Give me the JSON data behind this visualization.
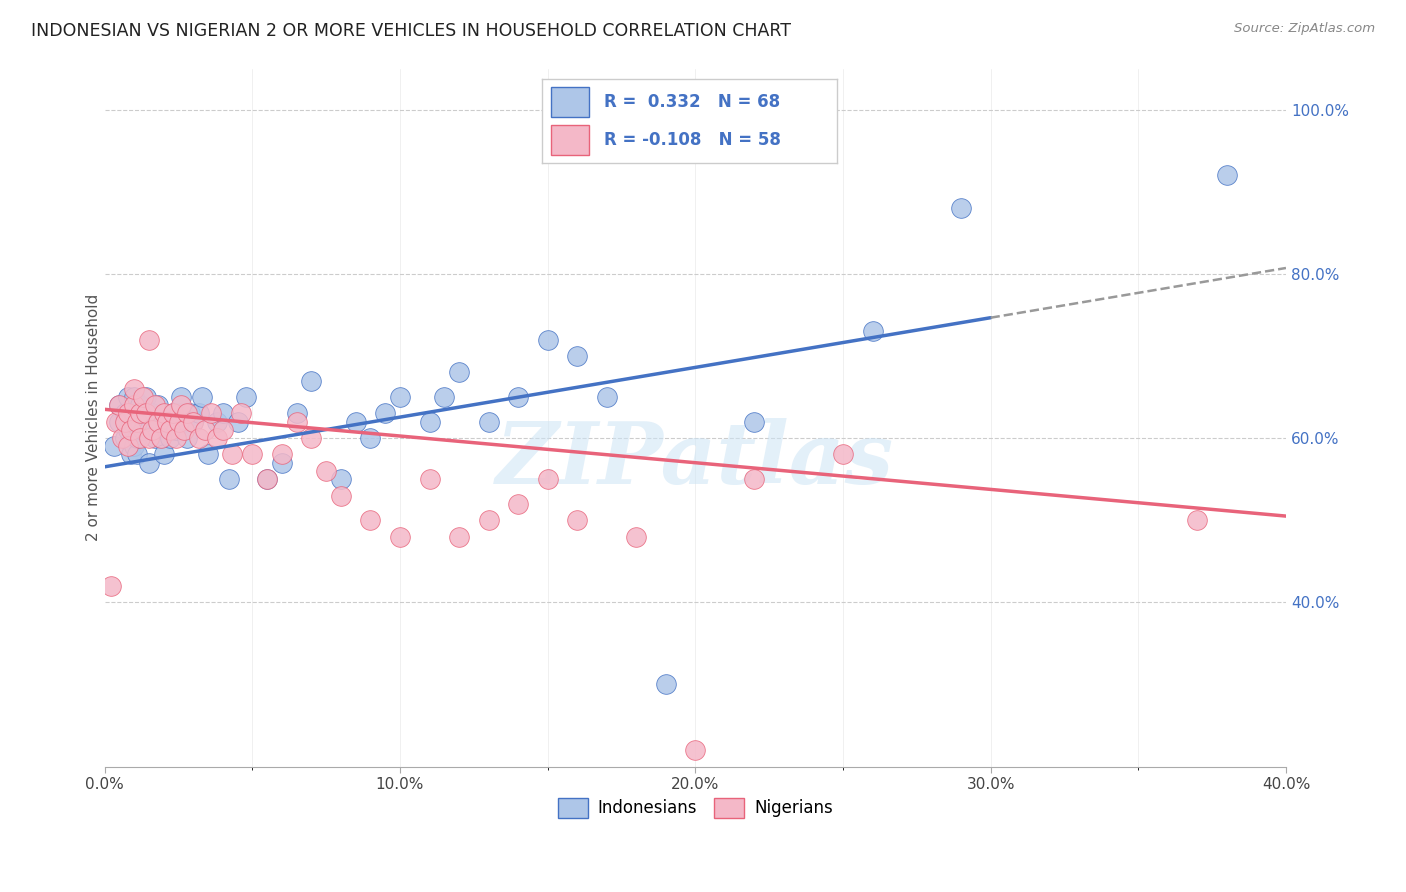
{
  "title": "INDONESIAN VS NIGERIAN 2 OR MORE VEHICLES IN HOUSEHOLD CORRELATION CHART",
  "source": "Source: ZipAtlas.com",
  "ylabel": "2 or more Vehicles in Household",
  "xmin": 0.0,
  "xmax": 0.4,
  "ymin": 0.2,
  "ymax": 1.05,
  "xtick_labels": [
    "0.0%",
    "",
    "",
    "",
    "10.0%",
    "",
    "",
    "",
    "20.0%",
    "",
    "",
    "",
    "30.0%",
    "",
    "",
    "",
    "40.0%"
  ],
  "xtick_vals": [
    0.0,
    0.025,
    0.05,
    0.075,
    0.1,
    0.125,
    0.15,
    0.175,
    0.2,
    0.225,
    0.25,
    0.275,
    0.3,
    0.325,
    0.35,
    0.375,
    0.4
  ],
  "xtick_labels_show": [
    "0.0%",
    "10.0%",
    "20.0%",
    "30.0%",
    "40.0%"
  ],
  "xtick_vals_show": [
    0.0,
    0.1,
    0.2,
    0.3,
    0.4
  ],
  "ytick_labels_right": [
    "100.0%",
    "80.0%",
    "60.0%",
    "40.0%"
  ],
  "ytick_vals_right": [
    1.0,
    0.8,
    0.6,
    0.4
  ],
  "legend_label1": "Indonesians",
  "legend_label2": "Nigerians",
  "r1": "0.332",
  "n1": "68",
  "r2": "-0.108",
  "n2": "58",
  "color_indonesian": "#aec6e8",
  "color_nigerian": "#f4b8c8",
  "line_color_indonesian": "#4472c4",
  "line_color_nigerian": "#e8637a",
  "watermark": "ZIPatlas",
  "indonesian_x": [
    0.003,
    0.005,
    0.005,
    0.007,
    0.007,
    0.008,
    0.008,
    0.009,
    0.009,
    0.01,
    0.01,
    0.01,
    0.01,
    0.011,
    0.011,
    0.012,
    0.012,
    0.013,
    0.013,
    0.014,
    0.015,
    0.015,
    0.016,
    0.017,
    0.018,
    0.018,
    0.019,
    0.02,
    0.021,
    0.022,
    0.023,
    0.024,
    0.025,
    0.026,
    0.027,
    0.028,
    0.029,
    0.03,
    0.032,
    0.033,
    0.035,
    0.038,
    0.04,
    0.042,
    0.045,
    0.048,
    0.055,
    0.06,
    0.065,
    0.07,
    0.08,
    0.085,
    0.09,
    0.095,
    0.1,
    0.11,
    0.115,
    0.12,
    0.13,
    0.14,
    0.15,
    0.16,
    0.17,
    0.19,
    0.22,
    0.26,
    0.29,
    0.38
  ],
  "indonesian_y": [
    0.59,
    0.62,
    0.64,
    0.6,
    0.63,
    0.61,
    0.65,
    0.58,
    0.63,
    0.59,
    0.61,
    0.63,
    0.65,
    0.58,
    0.6,
    0.62,
    0.64,
    0.61,
    0.63,
    0.65,
    0.57,
    0.61,
    0.63,
    0.6,
    0.62,
    0.64,
    0.6,
    0.58,
    0.62,
    0.6,
    0.63,
    0.61,
    0.63,
    0.65,
    0.62,
    0.6,
    0.63,
    0.62,
    0.63,
    0.65,
    0.58,
    0.62,
    0.63,
    0.55,
    0.62,
    0.65,
    0.55,
    0.57,
    0.63,
    0.67,
    0.55,
    0.62,
    0.6,
    0.63,
    0.65,
    0.62,
    0.65,
    0.68,
    0.62,
    0.65,
    0.72,
    0.7,
    0.65,
    0.3,
    0.62,
    0.73,
    0.88,
    0.92
  ],
  "nigerian_x": [
    0.002,
    0.004,
    0.005,
    0.006,
    0.007,
    0.008,
    0.008,
    0.009,
    0.01,
    0.01,
    0.011,
    0.012,
    0.012,
    0.013,
    0.014,
    0.015,
    0.015,
    0.016,
    0.017,
    0.018,
    0.019,
    0.02,
    0.021,
    0.022,
    0.023,
    0.024,
    0.025,
    0.026,
    0.027,
    0.028,
    0.03,
    0.032,
    0.034,
    0.036,
    0.038,
    0.04,
    0.043,
    0.046,
    0.05,
    0.055,
    0.06,
    0.065,
    0.07,
    0.075,
    0.08,
    0.09,
    0.1,
    0.11,
    0.12,
    0.13,
    0.14,
    0.15,
    0.16,
    0.18,
    0.2,
    0.22,
    0.25,
    0.37
  ],
  "nigerian_y": [
    0.42,
    0.62,
    0.64,
    0.6,
    0.62,
    0.59,
    0.63,
    0.61,
    0.64,
    0.66,
    0.62,
    0.6,
    0.63,
    0.65,
    0.63,
    0.6,
    0.72,
    0.61,
    0.64,
    0.62,
    0.6,
    0.63,
    0.62,
    0.61,
    0.63,
    0.6,
    0.62,
    0.64,
    0.61,
    0.63,
    0.62,
    0.6,
    0.61,
    0.63,
    0.6,
    0.61,
    0.58,
    0.63,
    0.58,
    0.55,
    0.58,
    0.62,
    0.6,
    0.56,
    0.53,
    0.5,
    0.48,
    0.55,
    0.48,
    0.5,
    0.52,
    0.55,
    0.5,
    0.48,
    0.22,
    0.55,
    0.58,
    0.5
  ],
  "ind_line_x0": 0.0,
  "ind_line_y0": 0.565,
  "ind_line_x1": 0.38,
  "ind_line_y1": 0.795,
  "ind_line_solid_end": 0.3,
  "nig_line_x0": 0.0,
  "nig_line_y0": 0.635,
  "nig_line_x1": 0.4,
  "nig_line_y1": 0.505
}
